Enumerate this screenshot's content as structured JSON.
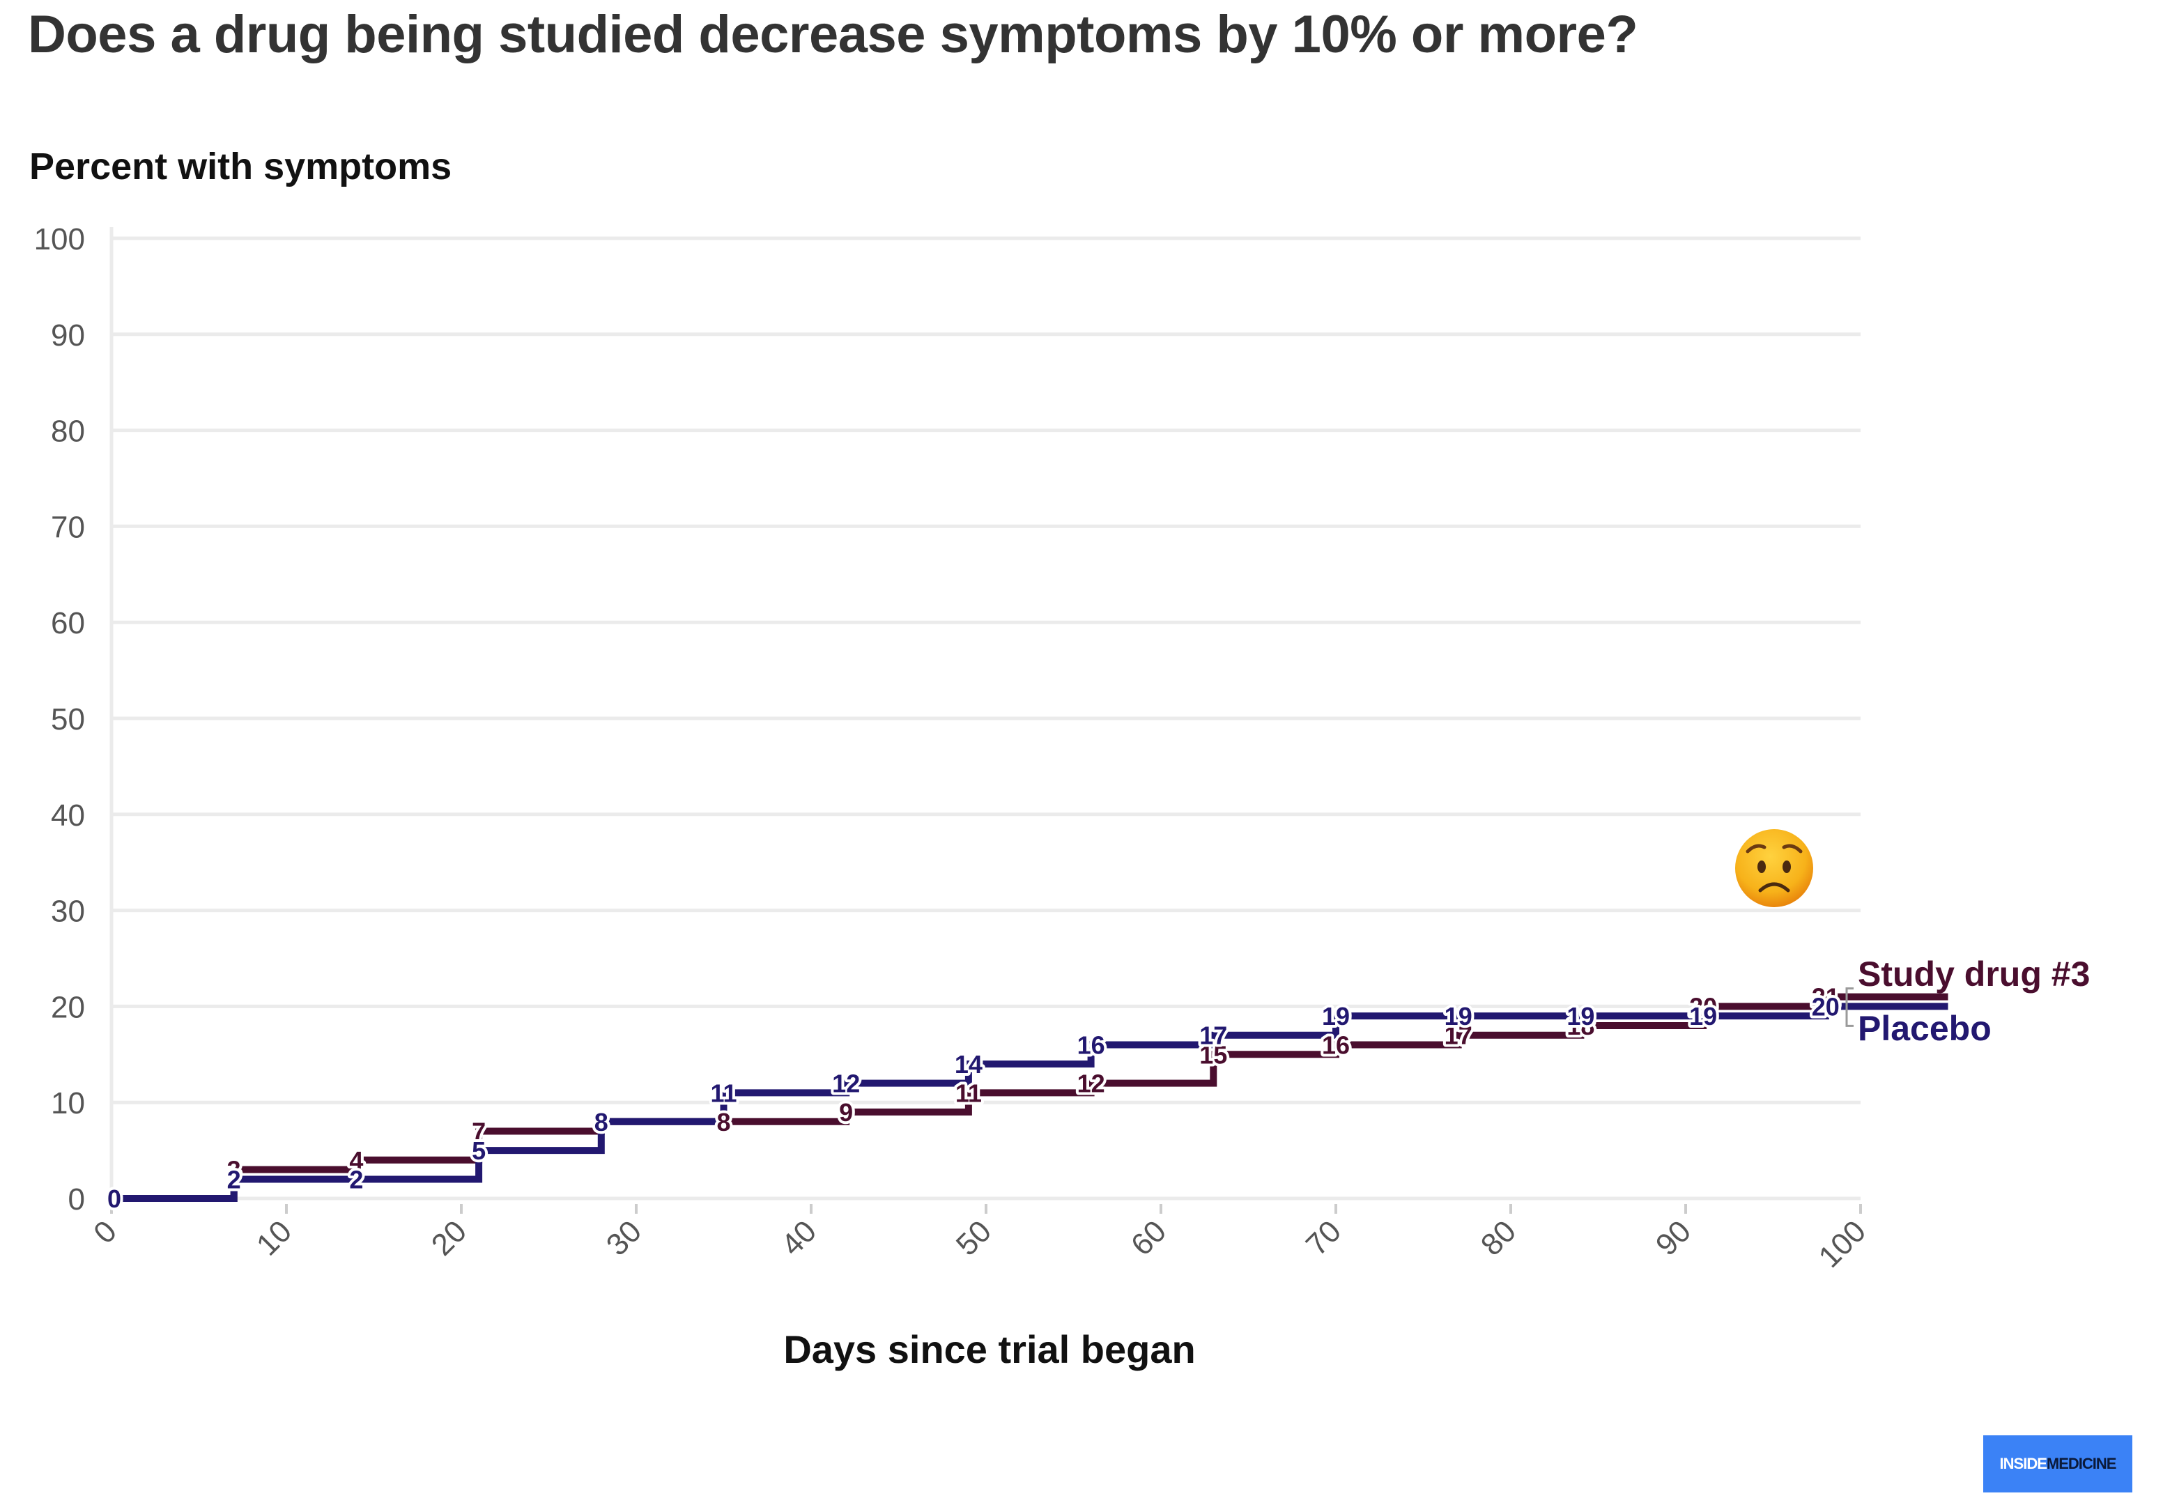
{
  "chart_data": {
    "type": "line",
    "step": true,
    "title": "Does a drug being studied decrease symptoms by 10% or more?",
    "ylabel": "Percent with symptoms",
    "xlabel": "Days since trial began",
    "xlim": [
      0,
      100
    ],
    "ylim": [
      0,
      100
    ],
    "xticks": [
      "0",
      "10",
      "20",
      "30",
      "40",
      "50",
      "60",
      "70",
      "80",
      "90",
      "100"
    ],
    "yticks": [
      "0",
      "10",
      "20",
      "30",
      "40",
      "50",
      "60",
      "70",
      "80",
      "90",
      "100"
    ],
    "grid": true,
    "legend": "right, direct labels at line ends",
    "annotation_icon": "worried-face-emoji",
    "series": [
      {
        "name": "Study drug #3",
        "color": "#4a0e2e",
        "x": [
          0,
          7,
          14,
          21,
          28,
          35,
          42,
          49,
          56,
          63,
          70,
          77,
          84,
          91,
          98
        ],
        "values": [
          0,
          3,
          4,
          7,
          8,
          8,
          9,
          11,
          12,
          15,
          16,
          17,
          18,
          20,
          21
        ]
      },
      {
        "name": "Placebo",
        "color": "#221870",
        "x": [
          0,
          7,
          14,
          21,
          28,
          35,
          42,
          49,
          56,
          63,
          70,
          77,
          84,
          91,
          98
        ],
        "values": [
          0,
          2,
          2,
          5,
          8,
          11,
          12,
          14,
          16,
          17,
          19,
          19,
          19,
          19,
          20
        ]
      }
    ]
  },
  "brand": {
    "part1": "INSIDE",
    "part2": "MEDICINE"
  }
}
